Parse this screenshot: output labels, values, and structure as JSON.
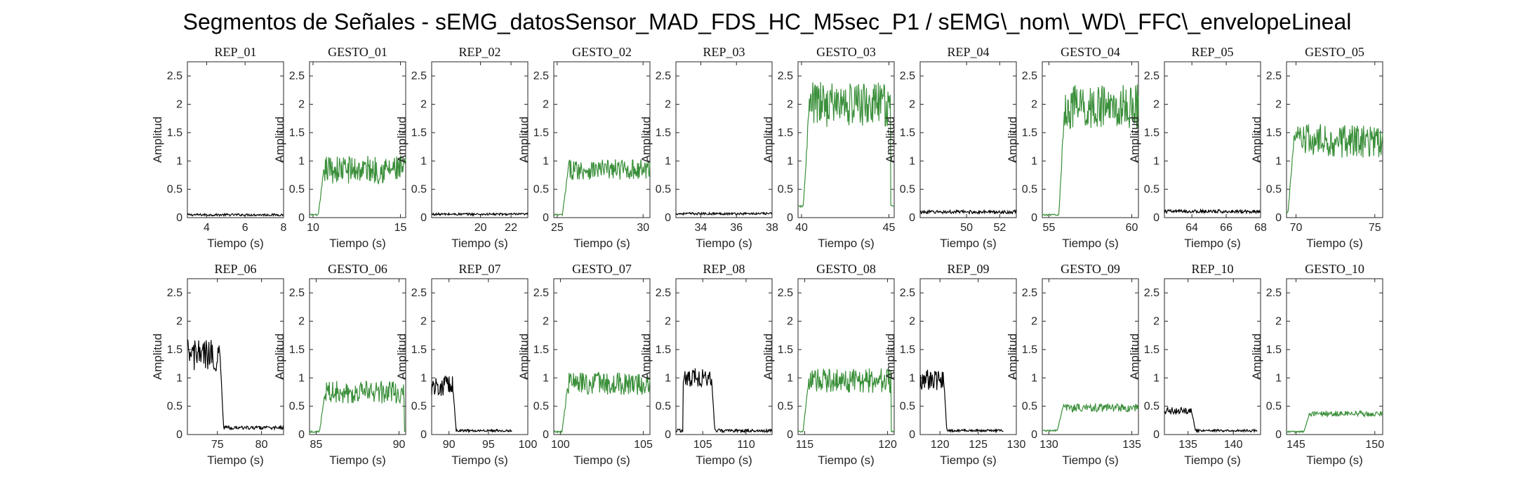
{
  "figure_title": "Segmentos de Señales - sEMG_datosSensor_MAD_FDS_HC_M5sec_P1 / sEMG\\_nom\\_WD\\_FFC\\_envelopeLineal",
  "colors": {
    "rep": "#000000",
    "gesto": "#3a8f3a",
    "axes": "#262626"
  },
  "chart_data": [
    {
      "type": "line",
      "title": "REP_01",
      "xlabel": "Tiempo (s)",
      "ylabel": "Amplitud",
      "xlim": [
        3,
        8
      ],
      "ylim": [
        0,
        2.75
      ],
      "xticks": [
        4,
        6,
        8
      ],
      "yticks": [
        0,
        0.5,
        1,
        1.5,
        2,
        2.5
      ],
      "kind": "rep",
      "profile": {
        "start": 3,
        "end": 8,
        "base": 0.05,
        "noise": 0.02
      }
    },
    {
      "type": "line",
      "title": "GESTO_01",
      "xlabel": "Tiempo (s)",
      "ylabel": "Amplitud",
      "xlim": [
        9.8,
        15.3
      ],
      "ylim": [
        0,
        2.75
      ],
      "xticks": [
        10,
        15
      ],
      "yticks": [
        0,
        0.5,
        1,
        1.5,
        2,
        2.5
      ],
      "kind": "gesto",
      "profile": {
        "start": 9.8,
        "end": 15.3,
        "rise": 10.3,
        "fall": 15.3,
        "low": 0.05,
        "high": 0.85,
        "noise": 0.25
      }
    },
    {
      "type": "line",
      "title": "REP_02",
      "xlabel": "Tiempo (s)",
      "ylabel": "Amplitud",
      "xlim": [
        16.8,
        23.1
      ],
      "ylim": [
        0,
        2.75
      ],
      "xticks": [
        20,
        22
      ],
      "yticks": [
        0,
        0.5,
        1,
        1.5,
        2,
        2.5
      ],
      "kind": "rep",
      "profile": {
        "start": 16.8,
        "end": 23.1,
        "base": 0.06,
        "noise": 0.02
      }
    },
    {
      "type": "line",
      "title": "GESTO_02",
      "xlabel": "Tiempo (s)",
      "ylabel": "Amplitud",
      "xlim": [
        24.8,
        30.4
      ],
      "ylim": [
        0,
        2.75
      ],
      "xticks": [
        25,
        30
      ],
      "yticks": [
        0,
        0.5,
        1,
        1.5,
        2,
        2.5
      ],
      "kind": "gesto",
      "profile": {
        "start": 24.8,
        "end": 30.4,
        "rise": 25.3,
        "fall": 30.4,
        "low": 0.05,
        "high": 0.85,
        "noise": 0.18
      }
    },
    {
      "type": "line",
      "title": "REP_03",
      "xlabel": "Tiempo (s)",
      "ylabel": "Amplitud",
      "xlim": [
        32.6,
        38
      ],
      "ylim": [
        0,
        2.75
      ],
      "xticks": [
        34,
        36,
        38
      ],
      "yticks": [
        0,
        0.5,
        1,
        1.5,
        2,
        2.5
      ],
      "kind": "rep",
      "profile": {
        "start": 32.6,
        "end": 38,
        "base": 0.07,
        "noise": 0.02
      }
    },
    {
      "type": "line",
      "title": "GESTO_03",
      "xlabel": "Tiempo (s)",
      "ylabel": "Amplitud",
      "xlim": [
        39.8,
        45.3
      ],
      "ylim": [
        0,
        2.75
      ],
      "xticks": [
        40,
        45
      ],
      "yticks": [
        0,
        0.5,
        1,
        1.5,
        2,
        2.5
      ],
      "kind": "gesto",
      "profile": {
        "start": 39.8,
        "end": 45.3,
        "rise": 40.1,
        "fall": 45.1,
        "low": 0.2,
        "high": 2.0,
        "noise": 0.4
      }
    },
    {
      "type": "line",
      "title": "REP_04",
      "xlabel": "Tiempo (s)",
      "ylabel": "Amplitud",
      "xlim": [
        47.2,
        53
      ],
      "ylim": [
        0,
        2.75
      ],
      "xticks": [
        50,
        52
      ],
      "yticks": [
        0,
        0.5,
        1,
        1.5,
        2,
        2.5
      ],
      "kind": "rep",
      "profile": {
        "start": 47.2,
        "end": 53,
        "base": 0.1,
        "noise": 0.03
      }
    },
    {
      "type": "line",
      "title": "GESTO_04",
      "xlabel": "Tiempo (s)",
      "ylabel": "Amplitud",
      "xlim": [
        54.6,
        60.4
      ],
      "ylim": [
        0,
        2.75
      ],
      "xticks": [
        55,
        60
      ],
      "yticks": [
        0,
        0.5,
        1,
        1.5,
        2,
        2.5
      ],
      "kind": "gesto",
      "profile": {
        "start": 54.6,
        "end": 60.4,
        "rise": 55.6,
        "fall": 60.4,
        "low": 0.05,
        "high": 1.95,
        "noise": 0.4
      }
    },
    {
      "type": "line",
      "title": "REP_05",
      "xlabel": "Tiempo (s)",
      "ylabel": "Amplitud",
      "xlim": [
        62.4,
        68
      ],
      "ylim": [
        0,
        2.75
      ],
      "xticks": [
        64,
        66,
        68
      ],
      "yticks": [
        0,
        0.5,
        1,
        1.5,
        2,
        2.5
      ],
      "kind": "rep",
      "profile": {
        "start": 62.4,
        "end": 68,
        "base": 0.11,
        "noise": 0.03
      }
    },
    {
      "type": "line",
      "title": "GESTO_05",
      "xlabel": "Tiempo (s)",
      "ylabel": "Amplitud",
      "xlim": [
        69.4,
        75.5
      ],
      "ylim": [
        0,
        2.75
      ],
      "xticks": [
        70,
        75
      ],
      "yticks": [
        0,
        0.5,
        1,
        1.5,
        2,
        2.5
      ],
      "kind": "gesto",
      "profile": {
        "start": 69.4,
        "end": 75.5,
        "rise": 69.5,
        "fall": 75.5,
        "low": 0.1,
        "high": 1.35,
        "noise": 0.3
      }
    },
    {
      "type": "line",
      "title": "REP_06",
      "xlabel": "Tiempo (s)",
      "ylabel": "Amplitud",
      "xlim": [
        71.6,
        82.5
      ],
      "ylim": [
        0,
        2.75
      ],
      "xticks": [
        75,
        80
      ],
      "yticks": [
        0,
        0.5,
        1,
        1.5,
        2,
        2.5
      ],
      "kind": "rep",
      "profile": {
        "start": 71.6,
        "end": 82.5,
        "active_end": 75.3,
        "active_level": 1.4,
        "active_noise": 0.28,
        "base": 0.12,
        "noise": 0.03
      }
    },
    {
      "type": "line",
      "title": "GESTO_06",
      "xlabel": "Tiempo (s)",
      "ylabel": "Amplitud",
      "xlim": [
        84.6,
        90.4
      ],
      "ylim": [
        0,
        2.75
      ],
      "xticks": [
        85,
        90
      ],
      "yticks": [
        0,
        0.5,
        1,
        1.5,
        2,
        2.5
      ],
      "kind": "gesto",
      "profile": {
        "start": 84.6,
        "end": 90.4,
        "rise": 85.2,
        "fall": 90.3,
        "low": 0.05,
        "high": 0.75,
        "noise": 0.2
      }
    },
    {
      "type": "line",
      "title": "REP_07",
      "xlabel": "Tiempo (s)",
      "ylabel": "Amplitud",
      "xlim": [
        87.8,
        100
      ],
      "ylim": [
        0,
        2.75
      ],
      "xticks": [
        90,
        95,
        100
      ],
      "yticks": [
        0,
        0.5,
        1,
        1.5,
        2,
        2.5
      ],
      "kind": "rep",
      "profile": {
        "start": 87.8,
        "end": 98,
        "active_end": 90.5,
        "active_level": 0.85,
        "active_noise": 0.18,
        "base": 0.07,
        "noise": 0.02
      }
    },
    {
      "type": "line",
      "title": "GESTO_07",
      "xlabel": "Tiempo (s)",
      "ylabel": "Amplitud",
      "xlim": [
        99.6,
        105.4
      ],
      "ylim": [
        0,
        2.75
      ],
      "xticks": [
        100,
        105
      ],
      "yticks": [
        0,
        0.5,
        1,
        1.5,
        2,
        2.5
      ],
      "kind": "gesto",
      "profile": {
        "start": 99.6,
        "end": 105.4,
        "rise": 100.1,
        "fall": 105.4,
        "low": 0.05,
        "high": 0.9,
        "noise": 0.2
      }
    },
    {
      "type": "line",
      "title": "REP_08",
      "xlabel": "Tiempo (s)",
      "ylabel": "Amplitud",
      "xlim": [
        101.9,
        113
      ],
      "ylim": [
        0,
        2.75
      ],
      "xticks": [
        105,
        110
      ],
      "yticks": [
        0,
        0.5,
        1,
        1.5,
        2,
        2.5
      ],
      "kind": "rep",
      "profile": {
        "start": 101.9,
        "end": 113,
        "active_start": 102.7,
        "active_end": 106,
        "active_level": 1.0,
        "active_noise": 0.17,
        "base": 0.07,
        "noise": 0.03
      }
    },
    {
      "type": "line",
      "title": "GESTO_08",
      "xlabel": "Tiempo (s)",
      "ylabel": "Amplitud",
      "xlim": [
        114.6,
        120.4
      ],
      "ylim": [
        0,
        2.75
      ],
      "xticks": [
        115,
        120
      ],
      "yticks": [
        0,
        0.5,
        1,
        1.5,
        2,
        2.5
      ],
      "kind": "gesto",
      "profile": {
        "start": 114.6,
        "end": 120.4,
        "rise": 114.9,
        "fall": 120.2,
        "low": 0.05,
        "high": 0.95,
        "noise": 0.22
      }
    },
    {
      "type": "line",
      "title": "REP_09",
      "xlabel": "Tiempo (s)",
      "ylabel": "Amplitud",
      "xlim": [
        117.4,
        130
      ],
      "ylim": [
        0,
        2.75
      ],
      "xticks": [
        120,
        125,
        130
      ],
      "yticks": [
        0,
        0.5,
        1,
        1.5,
        2,
        2.5
      ],
      "kind": "rep",
      "profile": {
        "start": 117.4,
        "end": 128.3,
        "active_end": 120.5,
        "active_level": 0.95,
        "active_noise": 0.2,
        "base": 0.07,
        "noise": 0.02
      }
    },
    {
      "type": "line",
      "title": "GESTO_09",
      "xlabel": "Tiempo (s)",
      "ylabel": "Amplitud",
      "xlim": [
        129.6,
        135.4
      ],
      "ylim": [
        0,
        2.75
      ],
      "xticks": [
        130,
        135
      ],
      "yticks": [
        0,
        0.5,
        1,
        1.5,
        2,
        2.5
      ],
      "kind": "gesto",
      "profile": {
        "start": 129.6,
        "end": 135.4,
        "rise": 130.5,
        "fall": 135.4,
        "low": 0.07,
        "high": 0.47,
        "noise": 0.07
      }
    },
    {
      "type": "line",
      "title": "REP_10",
      "xlabel": "Tiempo (s)",
      "ylabel": "Amplitud",
      "xlim": [
        132.4,
        143
      ],
      "ylim": [
        0,
        2.75
      ],
      "xticks": [
        135,
        140
      ],
      "yticks": [
        0,
        0.5,
        1,
        1.5,
        2,
        2.5
      ],
      "kind": "rep",
      "profile": {
        "start": 132.4,
        "end": 142.6,
        "active_end": 135.4,
        "active_level": 0.42,
        "active_noise": 0.06,
        "base": 0.07,
        "noise": 0.02
      }
    },
    {
      "type": "line",
      "title": "GESTO_10",
      "xlabel": "Tiempo (s)",
      "ylabel": "Amplitud",
      "xlim": [
        144.4,
        150.5
      ],
      "ylim": [
        0,
        2.75
      ],
      "xticks": [
        145,
        150
      ],
      "yticks": [
        0,
        0.5,
        1,
        1.5,
        2,
        2.5
      ],
      "kind": "gesto",
      "profile": {
        "start": 144.4,
        "end": 150.5,
        "rise": 145.5,
        "fall": 150.5,
        "low": 0.05,
        "high": 0.37,
        "noise": 0.05
      }
    }
  ]
}
